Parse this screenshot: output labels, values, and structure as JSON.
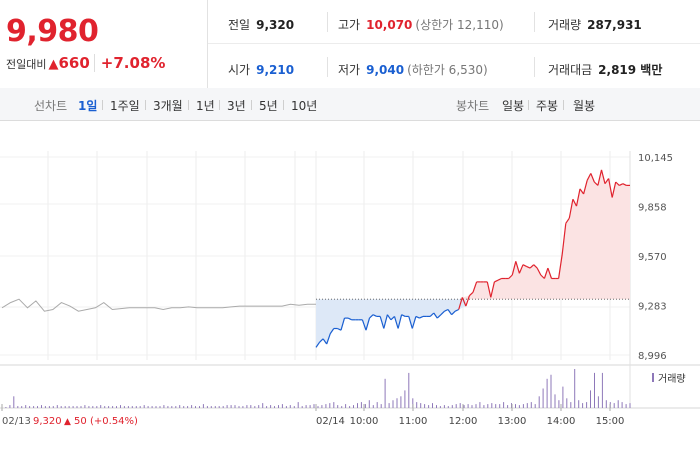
{
  "quote": {
    "price": "9,980",
    "change_label": "전일대비",
    "change_arrow": "▲",
    "change_amount": "660",
    "change_percent": "+7.08%",
    "prev_close_label": "전일",
    "prev_close": "9,320",
    "high_label": "고가",
    "high": "10,070",
    "upper_limit": "(상한가 12,110)",
    "volume_label": "거래량",
    "volume": "287,931",
    "open_label": "시가",
    "open": "9,210",
    "low_label": "저가",
    "low": "9,040",
    "lower_limit": "(하한가 6,530)",
    "turnover_label": "거래대금",
    "turnover": "2,819 백만"
  },
  "tabs": {
    "line_group_label": "선차트",
    "line_tabs": [
      "1일",
      "1주일",
      "3개월",
      "1년",
      "3년",
      "5년",
      "10년"
    ],
    "active_line_tab": "1일",
    "candle_group_label": "봉차트",
    "candle_tabs": [
      "일봉",
      "주봉",
      "월봉"
    ]
  },
  "colors": {
    "up": "#e0232e",
    "down": "#1a5fd1",
    "prev_day": "#aaaaaa",
    "volume": "#8e78b9"
  },
  "chart_data": {
    "type": "line",
    "yticks": [
      "10,145",
      "9,858",
      "9,570",
      "9,283",
      "8,996"
    ],
    "ylim": [
      8996,
      10145
    ],
    "baseline": 9320,
    "xticks": [
      "02/14",
      "10:00",
      "11:00",
      "12:00",
      "13:00",
      "14:00",
      "15:00"
    ],
    "prev_day": {
      "label": "02/13",
      "close": "9,320",
      "change_arrow": "▲",
      "change": "50",
      "change_percent": "(+0.54%)",
      "values": [
        9270,
        9300,
        9320,
        9270,
        9310,
        9250,
        9260,
        9300,
        9280,
        9250,
        9260,
        9270,
        9300,
        9260,
        9265,
        9270,
        9270,
        9270,
        9270,
        9260,
        9270,
        9270,
        9275,
        9270,
        9270,
        9270,
        9270,
        9275,
        9280,
        9280,
        9280,
        9280,
        9280,
        9280,
        9290,
        9285,
        9290,
        9290
      ]
    },
    "today": {
      "values": [
        9040,
        9070,
        9090,
        9060,
        9120,
        9150,
        9150,
        9140,
        9210,
        9210,
        9200,
        9200,
        9200,
        9200,
        9140,
        9210,
        9230,
        9220,
        9220,
        9150,
        9230,
        9200,
        9220,
        9150,
        9230,
        9220,
        9220,
        9150,
        9220,
        9210,
        9220,
        9220,
        9220,
        9240,
        9210,
        9230,
        9250,
        9260,
        9230,
        9250,
        9260,
        9330,
        9280,
        9340,
        9360,
        9420,
        9420,
        9420,
        9420,
        9330,
        9420,
        9430,
        9440,
        9440,
        9440,
        9460,
        9540,
        9470,
        9520,
        9510,
        9500,
        9520,
        9500,
        9460,
        9440,
        9500,
        9440,
        9440,
        9440,
        9580,
        9760,
        9790,
        9900,
        9860,
        9960,
        9930,
        10010,
        10050,
        10000,
        9980,
        10070,
        9990,
        10020,
        9910,
        10000,
        9980,
        9990,
        9980,
        9980
      ]
    },
    "volume_legend": "거래량",
    "volume": [
      2,
      1,
      3,
      12,
      2,
      2,
      3,
      2,
      2,
      2,
      3,
      2,
      2,
      2,
      3,
      2,
      2,
      2,
      2,
      2,
      2,
      3,
      2,
      2,
      2,
      3,
      2,
      2,
      2,
      2,
      3,
      2,
      2,
      2,
      2,
      2,
      3,
      2,
      2,
      2,
      2,
      3,
      2,
      2,
      2,
      3,
      2,
      2,
      3,
      2,
      2,
      4,
      2,
      2,
      2,
      2,
      2,
      3,
      3,
      3,
      2,
      2,
      3,
      3,
      2,
      3,
      5,
      2,
      3,
      2,
      3,
      4,
      2,
      3,
      2,
      6,
      2,
      3,
      3,
      4,
      2,
      3,
      4,
      5,
      6,
      3,
      2,
      4,
      2,
      3,
      5,
      6,
      4,
      8,
      3,
      6,
      4,
      30,
      5,
      8,
      10,
      12,
      18,
      36,
      10,
      6,
      5,
      4,
      3,
      5,
      3,
      2,
      3,
      2,
      3,
      4,
      5,
      3,
      4,
      3,
      4,
      6,
      3,
      4,
      5,
      4,
      4,
      6,
      3,
      5,
      4,
      3,
      4,
      5,
      6,
      4,
      12,
      20,
      30,
      34,
      14,
      8,
      22,
      10,
      6,
      40,
      8,
      5,
      6,
      18,
      36,
      12,
      36,
      8,
      6,
      5,
      8,
      6,
      4,
      5
    ]
  }
}
